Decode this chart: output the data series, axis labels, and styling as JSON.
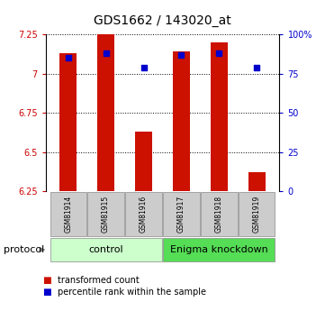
{
  "title": "GDS1662 / 143020_at",
  "samples": [
    "GSM81914",
    "GSM81915",
    "GSM81916",
    "GSM81917",
    "GSM81918",
    "GSM81919"
  ],
  "bar_values": [
    7.13,
    7.25,
    6.63,
    7.14,
    7.2,
    6.37
  ],
  "bar_baseline": 6.25,
  "percentile_values": [
    85,
    88,
    79,
    87,
    88,
    79
  ],
  "bar_color": "#cc1100",
  "dot_color": "#0000cc",
  "ylim_left": [
    6.25,
    7.25
  ],
  "ylim_right": [
    0,
    100
  ],
  "yticks_left": [
    6.25,
    6.5,
    6.75,
    7.0,
    7.25
  ],
  "yticks_right": [
    0,
    25,
    50,
    75,
    100
  ],
  "ytick_labels_left": [
    "6.25",
    "6.5",
    "6.75",
    "7",
    "7.25"
  ],
  "ytick_labels_right": [
    "0",
    "25",
    "50",
    "75",
    "100%"
  ],
  "groups": [
    {
      "label": "control",
      "start": 0,
      "end": 3,
      "color": "#ccffcc"
    },
    {
      "label": "Enigma knockdown",
      "start": 3,
      "end": 6,
      "color": "#55dd55"
    }
  ],
  "protocol_label": "protocol",
  "legend_items": [
    {
      "label": "transformed count",
      "color": "#cc1100"
    },
    {
      "label": "percentile rank within the sample",
      "color": "#0000cc"
    }
  ],
  "background_color": "#ffffff",
  "bar_width": 0.45,
  "grid_color": "#000000",
  "grid_linestyle": ":",
  "grid_linewidth": 0.7,
  "sample_box_color": "#cccccc",
  "title_fontsize": 10,
  "tick_fontsize": 7,
  "sample_fontsize": 5.5,
  "group_fontsize": 8,
  "legend_fontsize": 7
}
